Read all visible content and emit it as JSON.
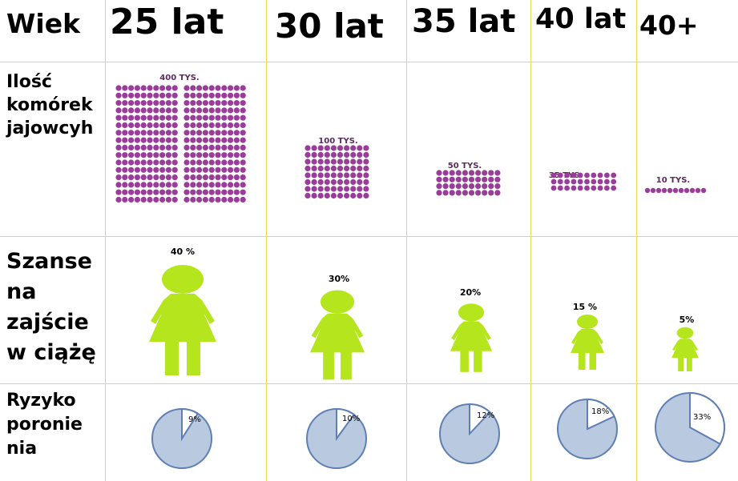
{
  "header": {
    "label": "Wiek",
    "ages": [
      "25 lat",
      "30 lat",
      "35 lat",
      "40 lat",
      "40+"
    ]
  },
  "rows": {
    "eggs_label": "Ilość\nkomórek\njajowcyh",
    "pregnancy_label": "Szanse\nna\nzajście\nw ciążę",
    "miscarriage_label": "Ryzyko\nporonie\nnia"
  },
  "eggs": [
    "400 TYS.",
    "100 TYS.",
    "50 TYS.",
    "35 TYS.",
    "10 TYS."
  ],
  "pregnancy": [
    {
      "label": "40 %",
      "value": 40
    },
    {
      "label": "30%",
      "value": 30
    },
    {
      "label": "20%",
      "value": 20
    },
    {
      "label": "15 %",
      "value": 15
    },
    {
      "label": "5%",
      "value": 5
    }
  ],
  "miscarriage": [
    {
      "label": "9%",
      "value": 9
    },
    {
      "label": "10%",
      "value": 10
    },
    {
      "label": "12%",
      "value": 12
    },
    {
      "label": "18%",
      "value": 18
    },
    {
      "label": "33%",
      "value": 33
    }
  ],
  "colors": {
    "grid": "#f0d84a",
    "dots": "#9a3d9a",
    "dot_label": "#5a2a5a",
    "figure": "#b5e61d",
    "pie_fill": "#b9c9e0",
    "pie_stroke": "#5f7fb3"
  }
}
